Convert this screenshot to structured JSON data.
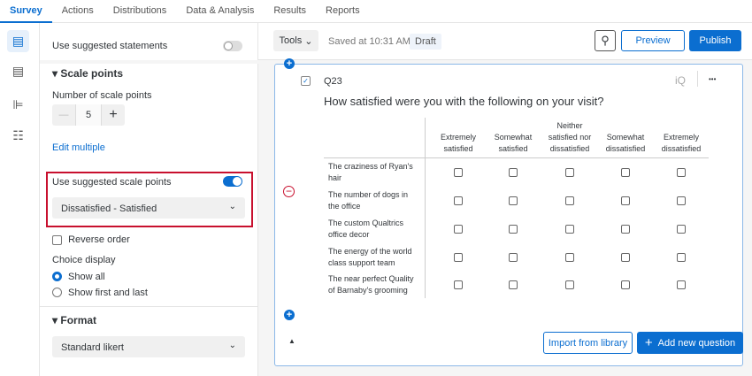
{
  "nav": {
    "tabs": [
      "Survey",
      "Actions",
      "Distributions",
      "Data & Analysis",
      "Results",
      "Reports"
    ],
    "active": "Survey"
  },
  "rail": {
    "icons": [
      "survey-clipboard-icon",
      "blocks-icon",
      "paint-roller-icon",
      "settings-sliders-icon"
    ]
  },
  "panel": {
    "suggested_statements": {
      "label": "Use suggested statements",
      "on": false
    },
    "scale_points": {
      "title": "Scale points",
      "number_label": "Number of scale points",
      "value": "5",
      "minus": "—",
      "plus": "+",
      "edit_multiple": "Edit multiple"
    },
    "suggested_scale": {
      "label": "Use suggested scale points",
      "on": true,
      "value": "Dissatisfied - Satisfied",
      "highlight_color": "#c8102e"
    },
    "reverse_order": {
      "label": "Reverse order",
      "checked": false
    },
    "choice_display": {
      "label": "Choice display",
      "options": [
        "Show all",
        "Show first and last"
      ],
      "selected": "Show all"
    },
    "format": {
      "title": "Format",
      "value": "Standard likert"
    }
  },
  "toolbar": {
    "tools": "Tools",
    "saved": "Saved at 10:31 AM",
    "status": "Draft",
    "preview": "Preview",
    "publish": "Publish"
  },
  "question": {
    "id": "Q23",
    "text": "How satisfied were you with the following on your visit?",
    "iq": "iQ",
    "more": "•••",
    "columns": [
      "Extremely satisfied",
      "Somewhat satisfied",
      "Neither satisfied nor dissatisfied",
      "Somewhat dissatisfied",
      "Extremely dissatisfied"
    ],
    "rows": [
      "The craziness of Ryan's hair",
      "The number of dogs in the office",
      "The custom Qualtrics office decor",
      "The energy of the world class support team",
      "The near perfect Quality of Barnaby's grooming"
    ]
  },
  "footer": {
    "import": "Import from library",
    "add": "Add new question",
    "add_icon": "+"
  },
  "accent": "#0b6ed0"
}
